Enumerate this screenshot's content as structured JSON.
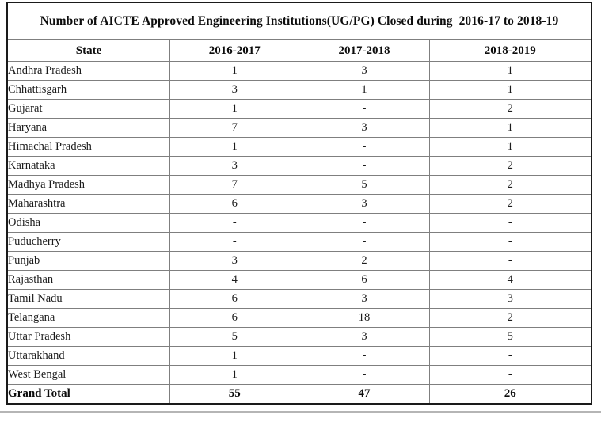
{
  "table": {
    "title": "Number of AICTE Approved Engineering Institutions(UG/PG) Closed during  2016-17 to 2018-19",
    "columns": [
      "State",
      "2016-2017",
      "2017-2018",
      "2018-2019"
    ],
    "rows": [
      {
        "state": "Andhra Pradesh",
        "values": [
          "1",
          "3",
          "1"
        ]
      },
      {
        "state": "Chhattisgarh",
        "values": [
          "3",
          "1",
          "1"
        ]
      },
      {
        "state": "Gujarat",
        "values": [
          "1",
          "-",
          "2"
        ]
      },
      {
        "state": "Haryana",
        "values": [
          "7",
          "3",
          "1"
        ]
      },
      {
        "state": "Himachal Pradesh",
        "values": [
          "1",
          "-",
          "1"
        ]
      },
      {
        "state": "Karnataka",
        "values": [
          "3",
          "-",
          "2"
        ]
      },
      {
        "state": "Madhya Pradesh",
        "values": [
          "7",
          "5",
          "2"
        ]
      },
      {
        "state": "Maharashtra",
        "values": [
          "6",
          "3",
          "2"
        ]
      },
      {
        "state": "Odisha",
        "values": [
          "-",
          "-",
          "-"
        ]
      },
      {
        "state": "Puducherry",
        "values": [
          "-",
          "-",
          "-"
        ]
      },
      {
        "state": "Punjab",
        "values": [
          "3",
          "2",
          "-"
        ]
      },
      {
        "state": "Rajasthan",
        "values": [
          "4",
          "6",
          "4"
        ]
      },
      {
        "state": "Tamil Nadu",
        "values": [
          "6",
          "3",
          "3"
        ]
      },
      {
        "state": "Telangana",
        "values": [
          "6",
          "18",
          "2"
        ]
      },
      {
        "state": "Uttar Pradesh",
        "values": [
          "5",
          "3",
          "5"
        ]
      },
      {
        "state": "Uttarakhand",
        "values": [
          "1",
          "-",
          "-"
        ]
      },
      {
        "state": "West Bengal",
        "values": [
          "1",
          "-",
          "-"
        ]
      }
    ],
    "grand_total": {
      "label": "Grand Total",
      "values": [
        "55",
        "47",
        "26"
      ]
    }
  },
  "colors": {
    "outer_border": "#1a1a1a",
    "grid_line": "#7f7f7f",
    "text": "#1c1c1c",
    "bottom_divider": "#b5b5b5",
    "background": "#ffffff"
  },
  "chart_data": {
    "type": "table",
    "title": "Number of AICTE Approved Engineering Institutions(UG/PG) Closed during 2016-17 to 2018-19",
    "categories": [
      "Andhra Pradesh",
      "Chhattisgarh",
      "Gujarat",
      "Haryana",
      "Himachal Pradesh",
      "Karnataka",
      "Madhya Pradesh",
      "Maharashtra",
      "Odisha",
      "Puducherry",
      "Punjab",
      "Rajasthan",
      "Tamil Nadu",
      "Telangana",
      "Uttar Pradesh",
      "Uttarakhand",
      "West Bengal"
    ],
    "series": [
      {
        "name": "2016-2017",
        "values": [
          1,
          3,
          1,
          7,
          1,
          3,
          7,
          6,
          null,
          null,
          3,
          4,
          6,
          6,
          5,
          1,
          1
        ],
        "total": 55
      },
      {
        "name": "2017-2018",
        "values": [
          3,
          1,
          null,
          3,
          null,
          null,
          5,
          3,
          null,
          null,
          2,
          6,
          3,
          18,
          3,
          null,
          null
        ],
        "total": 47
      },
      {
        "name": "2018-2019",
        "values": [
          1,
          1,
          2,
          1,
          1,
          2,
          2,
          2,
          null,
          null,
          null,
          4,
          3,
          2,
          5,
          null,
          null
        ],
        "total": 26
      }
    ]
  }
}
